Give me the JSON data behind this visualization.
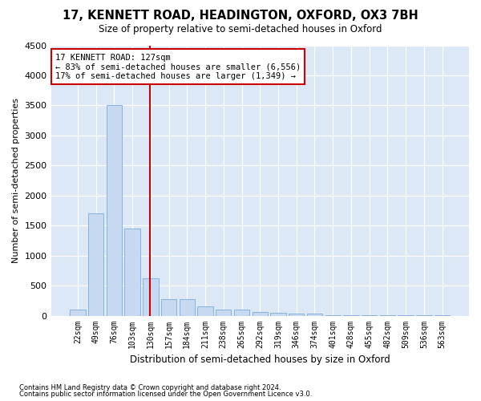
{
  "title1": "17, KENNETT ROAD, HEADINGTON, OXFORD, OX3 7BH",
  "title2": "Size of property relative to semi-detached houses in Oxford",
  "xlabel": "Distribution of semi-detached houses by size in Oxford",
  "ylabel": "Number of semi-detached properties",
  "categories": [
    "22sqm",
    "49sqm",
    "76sqm",
    "103sqm",
    "130sqm",
    "157sqm",
    "184sqm",
    "211sqm",
    "238sqm",
    "265sqm",
    "292sqm",
    "319sqm",
    "346sqm",
    "374sqm",
    "401sqm",
    "428sqm",
    "455sqm",
    "482sqm",
    "509sqm",
    "536sqm",
    "563sqm"
  ],
  "values": [
    100,
    1700,
    3500,
    1450,
    620,
    270,
    270,
    150,
    100,
    100,
    60,
    50,
    40,
    40,
    8,
    5,
    3,
    2,
    1,
    1,
    1
  ],
  "bar_color": "#c6d9f1",
  "bar_edge_color": "#7aabda",
  "vline_x": 3.97,
  "vline_color": "#cc0000",
  "annotation_text": "17 KENNETT ROAD: 127sqm\n← 83% of semi-detached houses are smaller (6,556)\n17% of semi-detached houses are larger (1,349) →",
  "annotation_box_color": "#ffffff",
  "annotation_box_edge_color": "#cc0000",
  "footer1": "Contains HM Land Registry data © Crown copyright and database right 2024.",
  "footer2": "Contains public sector information licensed under the Open Government Licence v3.0.",
  "ylim": [
    0,
    4500
  ],
  "yticks": [
    0,
    500,
    1000,
    1500,
    2000,
    2500,
    3000,
    3500,
    4000,
    4500
  ],
  "background_color": "#ffffff",
  "plot_bg_color": "#dce8f5"
}
